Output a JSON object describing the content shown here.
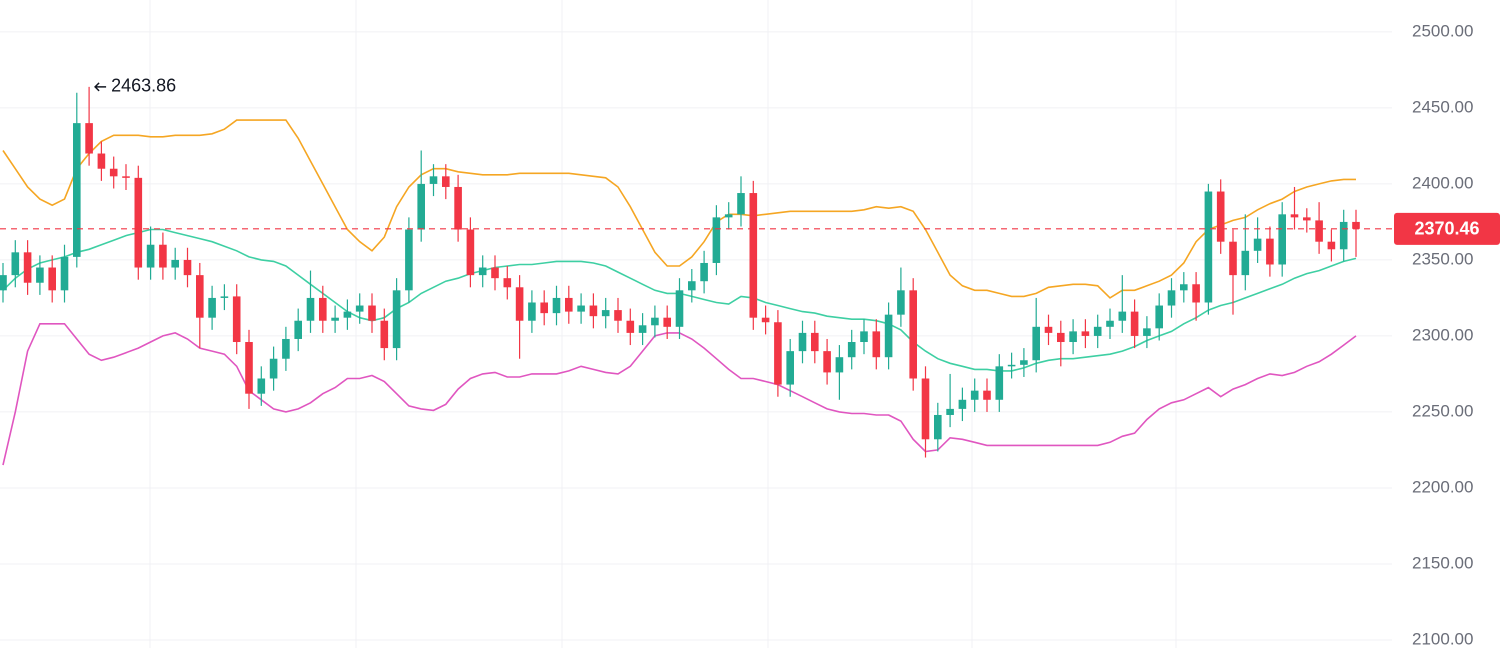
{
  "chart_data": {
    "type": "candlestick",
    "up_color": "#22ab94",
    "down_color": "#f23645",
    "ylim": [
      2094.7,
      2521
    ],
    "yticks": [
      {
        "value": 2100,
        "label": "2100.00"
      },
      {
        "value": 2150,
        "label": "2150.00"
      },
      {
        "value": 2200,
        "label": "2200.00"
      },
      {
        "value": 2250,
        "label": "2250.00"
      },
      {
        "value": 2300,
        "label": "2300.00"
      },
      {
        "value": 2350,
        "label": "2350.00"
      },
      {
        "value": 2400,
        "label": "2400.00"
      },
      {
        "value": 2450,
        "label": "2450.00"
      },
      {
        "value": 2500,
        "label": "2500.00"
      }
    ],
    "grid": true,
    "open": [
      2330,
      2340,
      2355,
      2335,
      2345,
      2330,
      2352,
      2440,
      2420,
      2410,
      2405,
      2404,
      2345,
      2360,
      2345,
      2350,
      2340,
      2312,
      2325,
      2326,
      2296,
      2262,
      2272,
      2285,
      2298,
      2310,
      2325,
      2310,
      2312,
      2316,
      2320,
      2310,
      2292,
      2330,
      2370,
      2400,
      2405,
      2398,
      2370,
      2340,
      2345,
      2338,
      2332,
      2310,
      2322,
      2315,
      2325,
      2316,
      2320,
      2313,
      2317,
      2310,
      2302,
      2307,
      2312,
      2306,
      2330,
      2336,
      2348,
      2378,
      2380,
      2394,
      2312,
      2309,
      2268,
      2290,
      2302,
      2290,
      2276,
      2286,
      2296,
      2303,
      2286,
      2314,
      2330,
      2272,
      2232,
      2248,
      2252,
      2258,
      2264,
      2258,
      2280,
      2281,
      2284,
      2306,
      2302,
      2296,
      2303,
      2300,
      2306,
      2310,
      2316,
      2300,
      2305,
      2320,
      2330,
      2334,
      2322,
      2395,
      2362,
      2340,
      2356,
      2364,
      2347,
      2380,
      2378,
      2376,
      2362,
      2357,
      2375
    ],
    "high": [
      2348,
      2363,
      2363,
      2353,
      2353,
      2360,
      2460,
      2463.86,
      2428,
      2418,
      2413,
      2412,
      2372,
      2368,
      2358,
      2358,
      2348,
      2333,
      2334,
      2334,
      2304,
      2280,
      2293,
      2306,
      2318,
      2343,
      2333,
      2320,
      2324,
      2328,
      2328,
      2318,
      2338,
      2378,
      2422,
      2413,
      2413,
      2406,
      2378,
      2353,
      2353,
      2346,
      2340,
      2330,
      2330,
      2333,
      2333,
      2328,
      2328,
      2325,
      2325,
      2318,
      2315,
      2320,
      2320,
      2338,
      2344,
      2356,
      2386,
      2388,
      2405,
      2402,
      2320,
      2317,
      2298,
      2310,
      2310,
      2298,
      2294,
      2304,
      2311,
      2311,
      2322,
      2345,
      2338,
      2280,
      2256,
      2275,
      2266,
      2272,
      2272,
      2288,
      2289,
      2292,
      2325,
      2314,
      2310,
      2311,
      2311,
      2314,
      2318,
      2340,
      2324,
      2313,
      2328,
      2338,
      2342,
      2342,
      2400,
      2403,
      2370,
      2380,
      2378,
      2372,
      2388,
      2398,
      2384,
      2388,
      2370,
      2383,
      2383
    ],
    "low": [
      2322,
      2332,
      2327,
      2327,
      2322,
      2322,
      2345,
      2412,
      2402,
      2397,
      2396,
      2337,
      2337,
      2337,
      2337,
      2332,
      2292,
      2304,
      2317,
      2288,
      2252,
      2254,
      2264,
      2277,
      2290,
      2302,
      2302,
      2302,
      2304,
      2308,
      2302,
      2284,
      2284,
      2322,
      2362,
      2392,
      2390,
      2362,
      2332,
      2332,
      2330,
      2324,
      2285,
      2302,
      2307,
      2307,
      2308,
      2308,
      2305,
      2305,
      2302,
      2294,
      2294,
      2299,
      2298,
      2298,
      2322,
      2328,
      2340,
      2370,
      2372,
      2304,
      2301,
      2260,
      2260,
      2282,
      2282,
      2268,
      2258,
      2278,
      2288,
      2278,
      2278,
      2306,
      2264,
      2220,
      2224,
      2240,
      2244,
      2250,
      2250,
      2250,
      2272,
      2273,
      2276,
      2294,
      2280,
      2288,
      2292,
      2292,
      2298,
      2302,
      2292,
      2292,
      2297,
      2312,
      2322,
      2310,
      2314,
      2354,
      2314,
      2330,
      2348,
      2339,
      2339,
      2370,
      2368,
      2354,
      2349,
      2349,
      2352
    ],
    "close": [
      2340,
      2355,
      2335,
      2345,
      2330,
      2352,
      2440,
      2420,
      2410,
      2405,
      2404,
      2345,
      2360,
      2345,
      2350,
      2340,
      2312,
      2325,
      2326,
      2296,
      2262,
      2272,
      2285,
      2298,
      2310,
      2325,
      2310,
      2312,
      2316,
      2320,
      2310,
      2292,
      2330,
      2370,
      2400,
      2405,
      2398,
      2370,
      2340,
      2345,
      2338,
      2332,
      2310,
      2322,
      2315,
      2325,
      2316,
      2320,
      2313,
      2317,
      2310,
      2302,
      2307,
      2312,
      2306,
      2330,
      2336,
      2348,
      2378,
      2380,
      2394,
      2312,
      2309,
      2268,
      2290,
      2302,
      2290,
      2276,
      2286,
      2296,
      2303,
      2286,
      2314,
      2330,
      2272,
      2232,
      2248,
      2252,
      2258,
      2264,
      2258,
      2280,
      2281,
      2284,
      2306,
      2302,
      2296,
      2303,
      2300,
      2306,
      2310,
      2316,
      2300,
      2305,
      2320,
      2330,
      2334,
      2322,
      2395,
      2362,
      2340,
      2356,
      2364,
      2347,
      2380,
      2378,
      2376,
      2362,
      2357,
      2375,
      2370.46
    ],
    "series": [
      {
        "color": "#f5a623",
        "values": [
          2422,
          2410,
          2398,
          2390,
          2386,
          2390,
          2410,
          2420,
          2428,
          2432,
          2432,
          2432,
          2431,
          2431,
          2432,
          2432,
          2432,
          2433,
          2436,
          2442,
          2442,
          2442,
          2442,
          2442,
          2430,
          2415,
          2400,
          2385,
          2370,
          2362,
          2356,
          2365,
          2385,
          2398,
          2406,
          2410,
          2410,
          2408,
          2407,
          2406,
          2406,
          2406,
          2407,
          2407,
          2407,
          2407,
          2407,
          2406,
          2405,
          2404,
          2398,
          2385,
          2370,
          2355,
          2346,
          2346,
          2352,
          2362,
          2375,
          2380,
          2380,
          2379,
          2380,
          2381,
          2382,
          2382,
          2382,
          2382,
          2382,
          2382,
          2383,
          2385,
          2384,
          2385,
          2382,
          2370,
          2355,
          2340,
          2333,
          2330,
          2330,
          2328,
          2326,
          2326,
          2328,
          2332,
          2333,
          2334,
          2334,
          2333,
          2325,
          2330,
          2330,
          2333,
          2336,
          2340,
          2348,
          2362,
          2370,
          2373,
          2376,
          2378,
          2383,
          2387,
          2390,
          2395,
          2398,
          2400,
          2402,
          2403,
          2403
        ]
      },
      {
        "color": "#3ecfa3",
        "values": [
          2330,
          2338,
          2344,
          2348,
          2350,
          2352,
          2355,
          2357,
          2360,
          2363,
          2366,
          2368,
          2370,
          2370,
          2368,
          2366,
          2364,
          2362,
          2359,
          2356,
          2352,
          2350,
          2349,
          2346,
          2340,
          2334,
          2328,
          2322,
          2316,
          2312,
          2310,
          2312,
          2318,
          2322,
          2328,
          2332,
          2336,
          2338,
          2341,
          2343,
          2345,
          2346,
          2347,
          2347,
          2348,
          2349,
          2349,
          2349,
          2348,
          2346,
          2342,
          2338,
          2334,
          2330,
          2328,
          2328,
          2326,
          2324,
          2322,
          2321,
          2326,
          2325,
          2322,
          2320,
          2318,
          2316,
          2315,
          2313,
          2312,
          2311,
          2311,
          2310,
          2308,
          2304,
          2296,
          2290,
          2285,
          2282,
          2280,
          2278,
          2278,
          2277,
          2277,
          2279,
          2282,
          2284,
          2285,
          2285,
          2286,
          2287,
          2288,
          2290,
          2293,
          2297,
          2300,
          2303,
          2308,
          2312,
          2317,
          2320,
          2322,
          2325,
          2328,
          2331,
          2334,
          2338,
          2341,
          2343,
          2346,
          2349,
          2351
        ]
      },
      {
        "color": "#e056c0",
        "values": [
          2215,
          2250,
          2290,
          2308,
          2308,
          2308,
          2298,
          2288,
          2284,
          2286,
          2289,
          2292,
          2296,
          2300,
          2302,
          2298,
          2292,
          2290,
          2288,
          2280,
          2264,
          2258,
          2252,
          2250,
          2252,
          2256,
          2262,
          2266,
          2272,
          2272,
          2274,
          2270,
          2262,
          2254,
          2252,
          2251,
          2255,
          2265,
          2272,
          2275,
          2276,
          2273,
          2273,
          2275,
          2275,
          2275,
          2277,
          2280,
          2278,
          2276,
          2275,
          2280,
          2290,
          2300,
          2302,
          2302,
          2298,
          2292,
          2285,
          2278,
          2272,
          2272,
          2270,
          2268,
          2264,
          2260,
          2256,
          2252,
          2250,
          2249,
          2249,
          2248,
          2248,
          2244,
          2232,
          2224,
          2225,
          2233,
          2232,
          2230,
          2228,
          2228,
          2228,
          2228,
          2228,
          2228,
          2228,
          2228,
          2228,
          2228,
          2230,
          2234,
          2236,
          2245,
          2252,
          2256,
          2258,
          2262,
          2266,
          2260,
          2265,
          2268,
          2272,
          2275,
          2274,
          2276,
          2280,
          2283,
          2288,
          2294,
          2300
        ]
      }
    ]
  }
}
